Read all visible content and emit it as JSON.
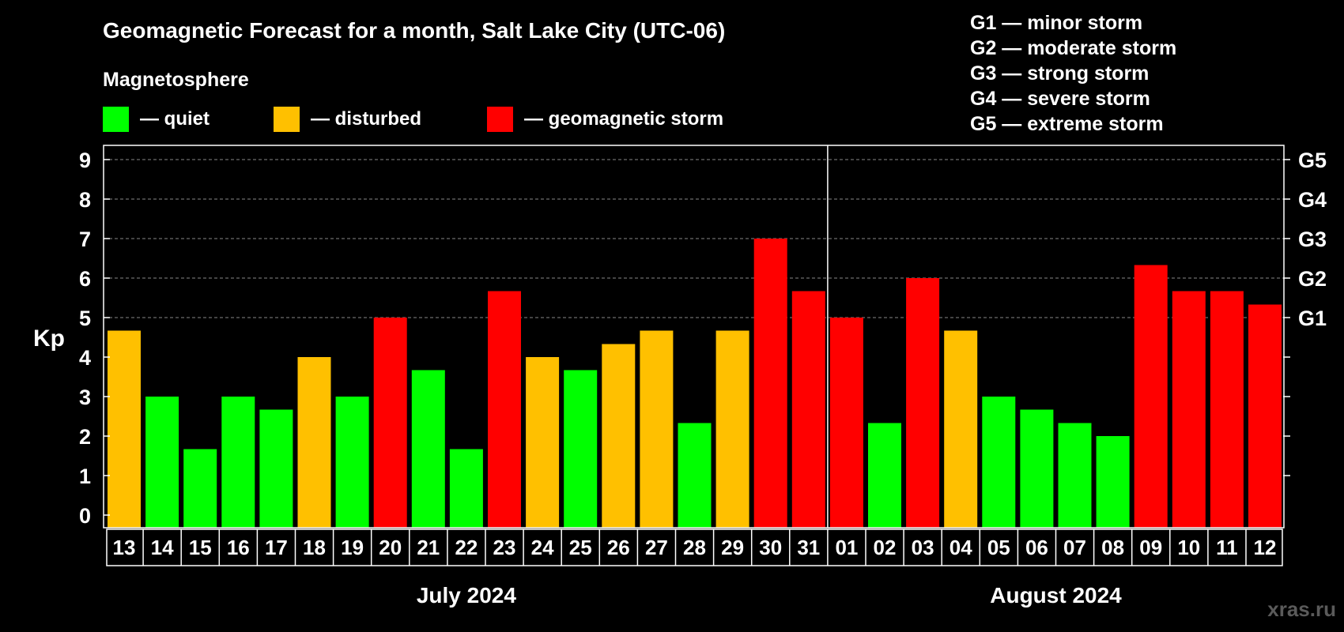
{
  "watermark": "xras.ru",
  "colors": {
    "background": "#000000",
    "quiet": "#00ff00",
    "disturbed": "#ffc000",
    "storm": "#ff0000",
    "axis": "#ffffff",
    "grid": "#888888",
    "watermark": "#5a5a5a"
  },
  "chart_data": {
    "type": "bar",
    "title": "Geomagnetic Forecast for a month, Salt Lake City (UTC-06)",
    "ylabel": "Kp",
    "ylim": [
      0,
      9
    ],
    "yticks": [
      "0",
      "1",
      "2",
      "3",
      "4",
      "5",
      "6",
      "7",
      "8",
      "9"
    ],
    "grid": "dashed at 5-9",
    "legend": {
      "title": "Magnetosphere",
      "items": [
        {
          "key": "quiet",
          "label": "— quiet",
          "color": "#00ff00"
        },
        {
          "key": "disturbed",
          "label": "— disturbed",
          "color": "#ffc000"
        },
        {
          "key": "storm",
          "label": "— geomagnetic storm",
          "color": "#ff0000"
        }
      ],
      "storm_scale": [
        "G1 — minor storm",
        "G2 — moderate storm",
        "G3 — strong storm",
        "G4 — severe storm",
        "G5 — extreme storm"
      ]
    },
    "right_axis": [
      {
        "label": "G1",
        "kp": 5
      },
      {
        "label": "G2",
        "kp": 6
      },
      {
        "label": "G3",
        "kp": 7
      },
      {
        "label": "G4",
        "kp": 8
      },
      {
        "label": "G5",
        "kp": 9
      }
    ],
    "months": [
      {
        "label": "July 2024",
        "first_index": 0,
        "last_index": 18
      },
      {
        "label": "August 2024",
        "first_index": 19,
        "last_index": 30
      }
    ],
    "categories": [
      "13",
      "14",
      "15",
      "16",
      "17",
      "18",
      "19",
      "20",
      "21",
      "22",
      "23",
      "24",
      "25",
      "26",
      "27",
      "28",
      "29",
      "30",
      "31",
      "01",
      "02",
      "03",
      "04",
      "05",
      "06",
      "07",
      "08",
      "09",
      "10",
      "11",
      "12"
    ],
    "values": [
      4.67,
      3,
      1.67,
      3,
      2.67,
      4,
      3,
      5,
      3.67,
      1.67,
      5.67,
      4,
      3.67,
      4.33,
      4.67,
      2.33,
      4.67,
      7,
      5.67,
      5,
      2.33,
      6,
      4.67,
      3,
      2.67,
      2.33,
      2,
      6.33,
      5.67,
      5.67,
      5.33
    ],
    "levels": [
      "disturbed",
      "quiet",
      "quiet",
      "quiet",
      "quiet",
      "disturbed",
      "quiet",
      "storm",
      "quiet",
      "quiet",
      "storm",
      "disturbed",
      "quiet",
      "disturbed",
      "disturbed",
      "quiet",
      "disturbed",
      "storm",
      "storm",
      "storm",
      "quiet",
      "storm",
      "disturbed",
      "quiet",
      "quiet",
      "quiet",
      "quiet",
      "storm",
      "storm",
      "storm",
      "storm"
    ]
  }
}
